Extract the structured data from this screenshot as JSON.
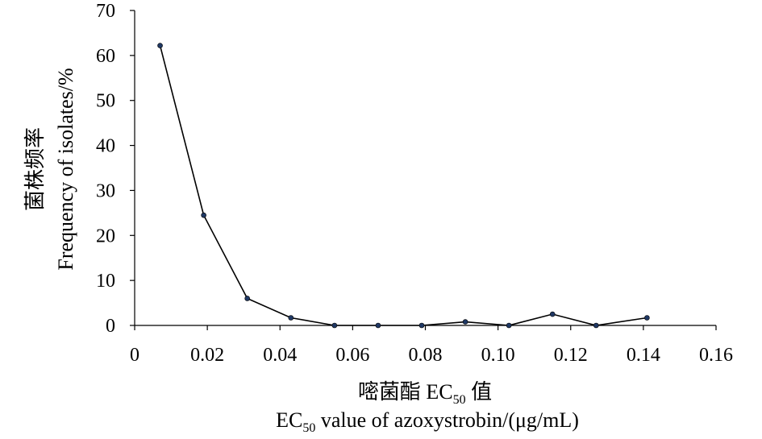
{
  "chart_data": {
    "type": "line",
    "title": "",
    "x": [
      0.007,
      0.019,
      0.031,
      0.043,
      0.055,
      0.067,
      0.079,
      0.091,
      0.103,
      0.115,
      0.127,
      0.141
    ],
    "y": [
      62.2,
      24.5,
      6.0,
      1.7,
      0.0,
      0.0,
      0.0,
      0.8,
      0.0,
      2.5,
      0.0,
      1.7
    ],
    "xlim": [
      0,
      0.16
    ],
    "ylim": [
      0,
      70
    ],
    "xticks": [
      "0",
      "0.02",
      "0.04",
      "0.06",
      "0.08",
      "0.10",
      "0.12",
      "0.14",
      "0.16"
    ],
    "yticks": [
      "0",
      "10",
      "20",
      "30",
      "40",
      "50",
      "60",
      "70"
    ],
    "ylabel_cn": "菌株频率",
    "ylabel_en": "Frequency of isolates/%",
    "xlabel_cn_prefix": "嘧菌酯 EC",
    "xlabel_cn_sub": "50",
    "xlabel_cn_suffix": " 值",
    "xlabel_en_prefix": "EC",
    "xlabel_en_sub": "50",
    "xlabel_en_suffix": " value of azoxystrobin/(μg/mL)",
    "grid": false,
    "line_color": "#000000",
    "marker_color": "#1f3864"
  }
}
